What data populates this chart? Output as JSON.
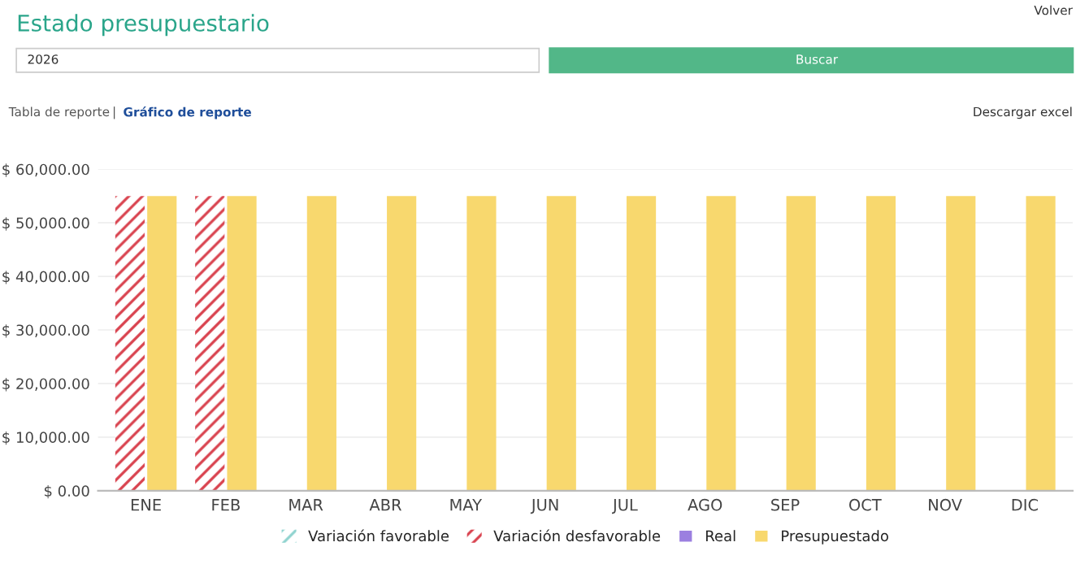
{
  "chart_data": {
    "type": "bar",
    "title": "Estado presupuestario",
    "annotations": [
      "Volver",
      "2026",
      "Buscar",
      "Tabla de reporte",
      "|",
      "Gráfico de reporte",
      "Descargar excel"
    ],
    "categories": [
      "ENE",
      "FEB",
      "MAR",
      "ABR",
      "MAY",
      "JUN",
      "JUL",
      "AGO",
      "SEP",
      "OCT",
      "NOV",
      "DIC"
    ],
    "series": [
      {
        "name": "Variación favorable",
        "color": "#8fd3cf",
        "values": [
          0,
          0,
          0,
          0,
          0,
          0,
          0,
          0,
          0,
          0,
          0,
          0
        ]
      },
      {
        "name": "Variación desfavorable",
        "color": "#d9434f",
        "values": [
          55000,
          55000,
          0,
          0,
          0,
          0,
          0,
          0,
          0,
          0,
          0,
          0
        ]
      },
      {
        "name": "Real",
        "color": "#9b7fe0",
        "values": [
          0,
          0,
          0,
          0,
          0,
          0,
          0,
          0,
          0,
          0,
          0,
          0
        ]
      },
      {
        "name": "Presupuestado",
        "color": "#f8d86e",
        "values": [
          55000,
          55000,
          55000,
          55000,
          55000,
          55000,
          55000,
          55000,
          55000,
          55000,
          55000,
          55000
        ]
      }
    ],
    "ylim": [
      0,
      60000
    ],
    "yticks": [
      {
        "value": 0,
        "label": "$ 0.00"
      },
      {
        "value": 10000,
        "label": "$ 10,000.00"
      },
      {
        "value": 20000,
        "label": "$ 20,000.00"
      },
      {
        "value": 30000,
        "label": "$ 30,000.00"
      },
      {
        "value": 40000,
        "label": "$ 40,000.00"
      },
      {
        "value": 50000,
        "label": "$ 50,000.00"
      },
      {
        "value": 60000,
        "label": "$ 60,000.00"
      }
    ],
    "grid": "y",
    "legend": "bottom"
  }
}
